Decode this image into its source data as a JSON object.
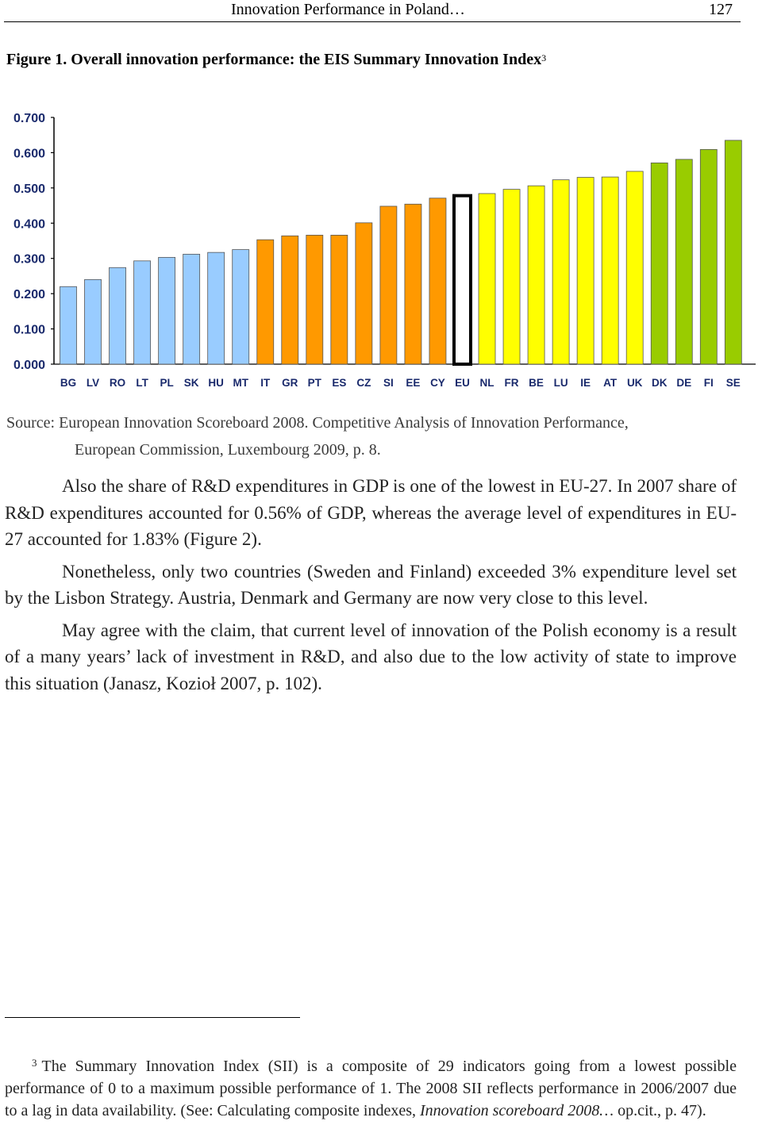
{
  "header": {
    "running_title": "Innovation Performance in Poland…",
    "page_number": "127"
  },
  "figure": {
    "caption": "Figure 1. Overall innovation performance: the EIS Summary Innovation Index",
    "footnote_ref": "3"
  },
  "chart_data": {
    "type": "bar",
    "title": "",
    "xlabel": "",
    "ylabel": "",
    "ylim": [
      0,
      0.7
    ],
    "yticks": [
      "0.000",
      "0.100",
      "0.200",
      "0.300",
      "0.400",
      "0.500",
      "0.600",
      "0.700"
    ],
    "ytick_values": [
      0,
      0.1,
      0.2,
      0.3,
      0.4,
      0.5,
      0.6,
      0.7
    ],
    "grid": false,
    "categories": [
      "BG",
      "LV",
      "RO",
      "LT",
      "PL",
      "SK",
      "HU",
      "MT",
      "IT",
      "GR",
      "PT",
      "ES",
      "CZ",
      "SI",
      "EE",
      "CY",
      "EU",
      "NL",
      "FR",
      "BE",
      "LU",
      "IE",
      "AT",
      "UK",
      "DK",
      "DE",
      "FI",
      "SE"
    ],
    "values": [
      0.22,
      0.24,
      0.274,
      0.293,
      0.303,
      0.312,
      0.317,
      0.325,
      0.353,
      0.364,
      0.366,
      0.366,
      0.401,
      0.448,
      0.454,
      0.471,
      0.478,
      0.484,
      0.496,
      0.506,
      0.523,
      0.53,
      0.531,
      0.547,
      0.571,
      0.581,
      0.609,
      0.635
    ],
    "bar_colors": [
      "#99ccff",
      "#99ccff",
      "#99ccff",
      "#99ccff",
      "#99ccff",
      "#99ccff",
      "#99ccff",
      "#99ccff",
      "#ff9900",
      "#ff9900",
      "#ff9900",
      "#ff9900",
      "#ff9900",
      "#ff9900",
      "#ff9900",
      "#ff9900",
      "#ffffff",
      "#ffff00",
      "#ffff00",
      "#ffff00",
      "#ffff00",
      "#ffff00",
      "#ffff00",
      "#ffff00",
      "#99cc00",
      "#99cc00",
      "#99cc00",
      "#99cc00"
    ]
  },
  "source": {
    "line1": "Source: European Innovation Scoreboard 2008. Competitive Analysis of Innovation Performance,",
    "line2": "European Commission, Luxembourg 2009, p. 8."
  },
  "body": {
    "p1": "Also the share of R&D expenditures in GDP is one of the lowest in EU-27. In 2007 share of R&D expenditures accounted for 0.56% of GDP, whereas the average level of expenditures in EU-27 accounted for 1.83% (Figure 2).",
    "p2": "Nonetheless, only two countries (Sweden and Finland) exceeded 3% expenditure level set by the Lisbon Strategy. Austria, Denmark and Germany are now very close to this level.",
    "p3": "May agree with the claim, that current level of innovation of the Polish economy is a result of a many years’ lack of investment in R&D, and also due to the low activity of state to improve this situation (Janasz, Kozioł 2007, p. 102)."
  },
  "footnote": {
    "mark": "3",
    "text": "The Summary Innovation Index (SII) is a composite of 29 indicators going from a lowest possible performance of 0 to a maximum possible performance of 1. The 2008 SII reflects performance in 2006/2007 due to a lag in data availability. (See: Calculating composite indexes,",
    "italic": "Innovation scoreboard 2008…",
    "tail": " op.cit., p. 47)."
  }
}
